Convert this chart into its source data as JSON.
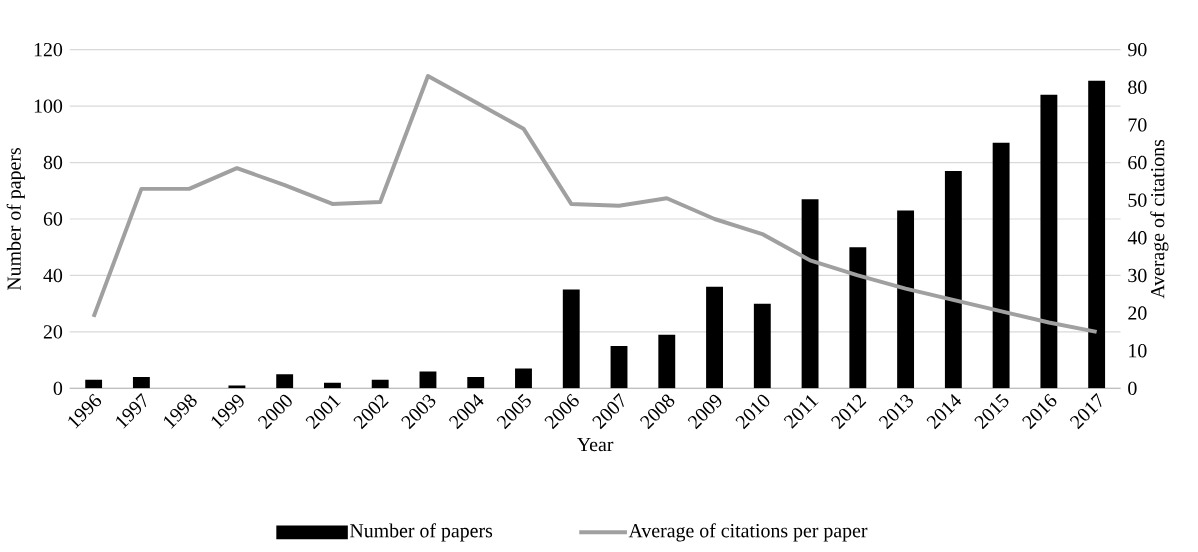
{
  "chart_data": {
    "type": "bar",
    "xlabel": "Year",
    "ylabel": "Number of papers",
    "y2label": "Average of citations",
    "categories": [
      "1996",
      "1997",
      "1998",
      "1999",
      "2000",
      "2001",
      "2002",
      "2003",
      "2004",
      "2005",
      "2006",
      "2007",
      "2008",
      "2009",
      "2010",
      "2011",
      "2012",
      "2013",
      "2014",
      "2015",
      "2016",
      "2017"
    ],
    "series": [
      {
        "name": "Number of papers",
        "color": "#000000",
        "values": [
          3,
          4,
          0,
          1,
          5,
          2,
          3,
          6,
          4,
          7,
          35,
          15,
          19,
          36,
          30,
          67,
          50,
          63,
          77,
          87,
          104,
          109
        ]
      },
      {
        "name": "Average of citations per paper",
        "type": "line",
        "axis": "y2",
        "color": "#a0a0a0",
        "values": [
          19,
          53,
          53,
          58.5,
          54,
          49,
          49.5,
          83,
          76,
          69,
          49,
          48.5,
          50.5,
          45,
          41,
          34,
          30,
          26.5,
          23.5,
          20.5,
          17.5,
          15
        ]
      }
    ],
    "ylim": [
      0,
      120
    ],
    "yticks": [
      0,
      20,
      40,
      60,
      80,
      100,
      120
    ],
    "y2lim": [
      0,
      90
    ],
    "y2ticks": [
      0,
      10,
      20,
      30,
      40,
      50,
      60,
      70,
      80,
      90
    ],
    "grid": "y",
    "legend": "bottom",
    "marker": "none",
    "line_style": "solid"
  }
}
